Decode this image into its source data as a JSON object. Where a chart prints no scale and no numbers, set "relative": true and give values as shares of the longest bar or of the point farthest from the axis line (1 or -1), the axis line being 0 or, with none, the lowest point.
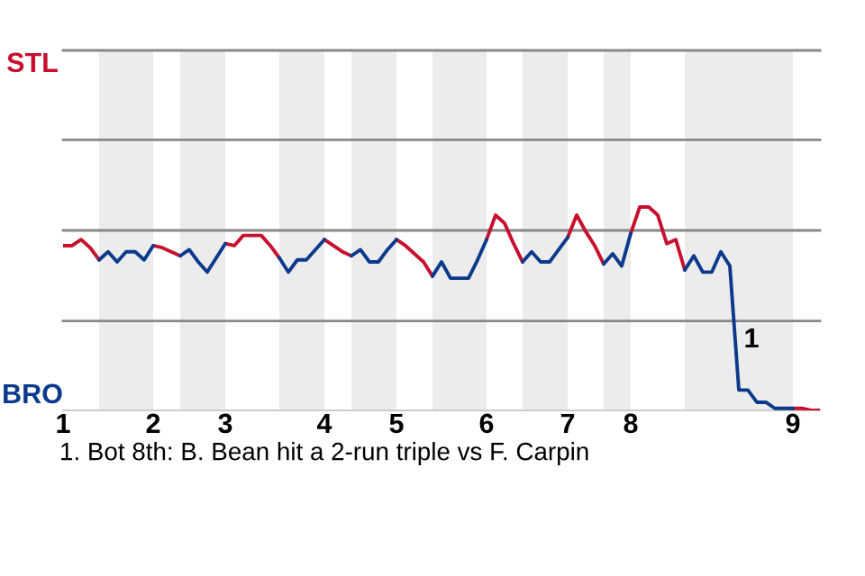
{
  "chart_data": {
    "type": "line",
    "relative": true,
    "categories": [
      "1",
      null,
      null,
      null,
      null,
      null,
      null,
      null,
      null,
      null,
      "2",
      null,
      null,
      null,
      null,
      null,
      null,
      null,
      "3",
      null,
      null,
      null,
      null,
      null,
      null,
      null,
      null,
      null,
      null,
      "4",
      null,
      null,
      null,
      null,
      null,
      null,
      null,
      "5",
      null,
      null,
      null,
      null,
      null,
      null,
      null,
      null,
      null,
      "6",
      null,
      null,
      null,
      null,
      null,
      null,
      null,
      null,
      "7",
      null,
      null,
      null,
      null,
      null,
      null,
      "8",
      null,
      null,
      null,
      null,
      null,
      null,
      null,
      null,
      null,
      null,
      null,
      null,
      null,
      null,
      null,
      null,
      null,
      "9",
      null,
      null,
      null
    ],
    "series": [
      {
        "name": "STL",
        "color": "#c8102e",
        "values": [
          0.81,
          0.81,
          0.84,
          0.8,
          0.74,
          null,
          null,
          null,
          null,
          null,
          0.81,
          0.8,
          0.78,
          0.76,
          null,
          null,
          null,
          null,
          0.82,
          0.81,
          0.86,
          0.86,
          0.86,
          0.81,
          0.75,
          null,
          null,
          null,
          null,
          0.84,
          0.81,
          0.78,
          0.76,
          null,
          null,
          null,
          null,
          0.84,
          0.81,
          0.77,
          0.73,
          0.66,
          null,
          null,
          null,
          null,
          null,
          0.84,
          0.96,
          0.92,
          0.82,
          0.73,
          null,
          null,
          null,
          null,
          0.85,
          0.96,
          0.88,
          0.81,
          0.72,
          null,
          null,
          0.87,
          1,
          1,
          0.96,
          0.82,
          0.84,
          0.69,
          null,
          null,
          null,
          null,
          null,
          null,
          null,
          null,
          null,
          null,
          null,
          0.01,
          0.01,
          0,
          0
        ]
      },
      {
        "name": "BRO",
        "color": "#0b3a8c",
        "values": [
          null,
          null,
          null,
          null,
          0.74,
          0.78,
          0.73,
          0.78,
          0.78,
          0.74,
          0.81,
          null,
          null,
          0.76,
          0.79,
          0.73,
          0.68,
          0.75,
          0.82,
          null,
          null,
          null,
          null,
          null,
          0.75,
          0.68,
          0.74,
          0.74,
          0.79,
          0.84,
          null,
          null,
          0.76,
          0.79,
          0.73,
          0.73,
          0.79,
          0.84,
          null,
          null,
          null,
          0.66,
          0.73,
          0.65,
          0.65,
          0.65,
          0.74,
          0.84,
          null,
          null,
          null,
          0.73,
          0.78,
          0.73,
          0.73,
          0.79,
          0.85,
          null,
          null,
          null,
          0.72,
          0.77,
          0.71,
          0.87,
          null,
          null,
          null,
          null,
          null,
          0.69,
          0.76,
          0.68,
          0.68,
          0.78,
          0.71,
          0.1,
          0.1,
          0.04,
          0.04,
          0.01,
          0.01,
          0.01,
          null,
          null,
          null
        ]
      }
    ],
    "ref_lines": [
      {
        "axis": "y",
        "value": 0.44,
        "color": "#888888"
      },
      {
        "axis": "y",
        "value": 0.885,
        "color": "#888888"
      },
      {
        "axis": "y",
        "value": 1.33,
        "color": "#888888"
      },
      {
        "axis": "y",
        "value": 1.77,
        "color": "#888888"
      }
    ],
    "annotations": [
      "1",
      "1. Bot 8th: B. Bean hit a 2-run triple vs F. Carpin"
    ],
    "legend": false,
    "marker": "none",
    "line_style": "solid"
  }
}
